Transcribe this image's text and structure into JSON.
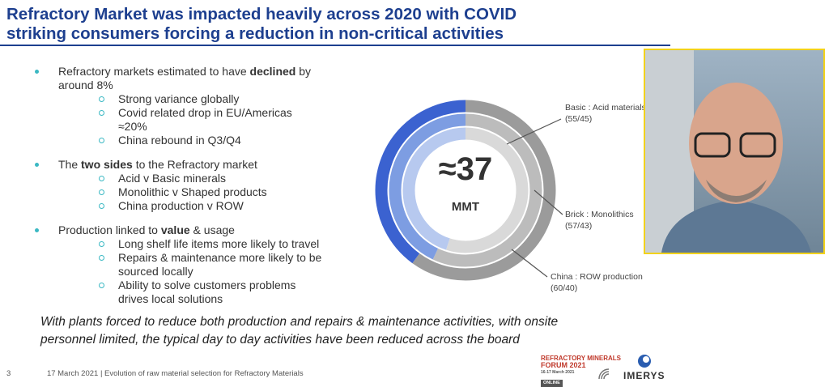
{
  "title_lines": [
    "Refractory Market was impacted heavily across 2020 with COVID",
    "striking consumers forcing a reduction in non-critical activities"
  ],
  "bullets": [
    {
      "parts": [
        {
          "text": "Refractory markets estimated to have ",
          "bold": false
        },
        {
          "text": "declined",
          "bold": true
        },
        {
          "text": " by around 8%",
          "bold": false
        }
      ],
      "sub": [
        "Strong variance globally",
        "Covid related drop in EU/Americas ≈20%",
        "China rebound in Q3/Q4"
      ]
    },
    {
      "parts": [
        {
          "text": "The ",
          "bold": false
        },
        {
          "text": "two sides",
          "bold": true
        },
        {
          "text": " to the Refractory market",
          "bold": false
        }
      ],
      "sub": [
        "Acid v Basic minerals",
        "Monolithic v Shaped products",
        "China production v ROW"
      ]
    },
    {
      "parts": [
        {
          "text": "Production linked to ",
          "bold": false
        },
        {
          "text": "value",
          "bold": true
        },
        {
          "text": " & usage",
          "bold": false
        }
      ],
      "sub": [
        "Long shelf life items more likely to travel",
        "Repairs & maintenance more likely to be sourced locally",
        "Ability to solve customers problems drives local solutions"
      ]
    }
  ],
  "donut": {
    "center_value": "≈37",
    "center_unit": "MMT",
    "rings": [
      {
        "label": "Basic : Acid materials",
        "ratio": "(55/45)",
        "split": [
          55,
          45
        ],
        "colors": [
          "#d9d9d9",
          "#b7c9ef"
        ]
      },
      {
        "label": "Brick : Monolithics",
        "ratio": "(57/43)",
        "split": [
          57,
          43
        ],
        "colors": [
          "#bcbcbc",
          "#7d9de2"
        ]
      },
      {
        "label": "China : ROW production",
        "ratio": "(60/40)",
        "split": [
          60,
          40
        ],
        "colors": [
          "#9b9b9b",
          "#3b62d0"
        ]
      }
    ]
  },
  "quote_lines": [
    "With plants forced to reduce both production and repairs & maintenance activities, with onsite",
    "personnel limited, the typical day to day activities have been reduced across the board"
  ],
  "footer": {
    "page": "3",
    "date": "17 March 2021",
    "caption": "| Evolution of raw material selection for Refractory Materials"
  },
  "forum_logo": [
    "REFRACTORY MINERALS",
    "FORUM 2021",
    "16-17 March 2021",
    "ONLINE"
  ],
  "company": "IMERYS"
}
